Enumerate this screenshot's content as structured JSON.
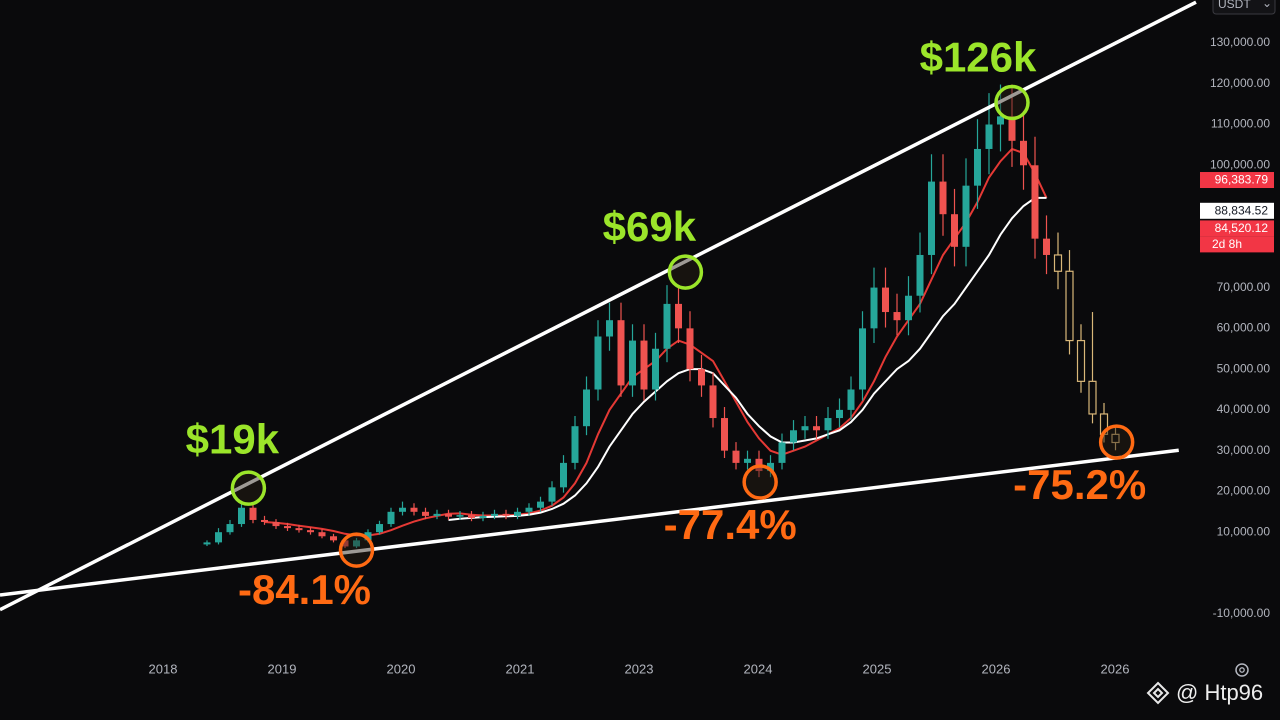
{
  "page": {
    "currency": "USDT",
    "watermark": "@ Htp96"
  },
  "chart_data": {
    "type": "candlestick",
    "xlim": [
      -18,
      86
    ],
    "ylim": [
      -20000,
      140000
    ],
    "yticks": [
      {
        "value": 130000,
        "label": "130,000.00"
      },
      {
        "value": 120000,
        "label": "120,000.00"
      },
      {
        "value": 110000,
        "label": "110,000.00"
      },
      {
        "value": 100000,
        "label": "100,000.00"
      },
      {
        "value": 70000,
        "label": "70,000.00"
      },
      {
        "value": 60000,
        "label": "60,000.00"
      },
      {
        "value": 50000,
        "label": "50,000.00"
      },
      {
        "value": 40000,
        "label": "40,000.00"
      },
      {
        "value": 30000,
        "label": "30,000.00"
      },
      {
        "value": 20000,
        "label": "20,000.00"
      },
      {
        "value": 10000,
        "label": "10,000.00"
      },
      {
        "value": -10000,
        "label": "-10,000.00"
      }
    ],
    "xlabels": [
      "2018",
      "2019",
      "2020",
      "2021",
      "2023",
      "2024",
      "2025",
      "2026",
      "2026"
    ],
    "candles": {
      "up_color": "#26a69a",
      "down_color": "#ef5350",
      "x": [
        0,
        1,
        2,
        3,
        4,
        5,
        6,
        7,
        8,
        9,
        10,
        11,
        12,
        13,
        14,
        15,
        16,
        17,
        18,
        19,
        20,
        21,
        22,
        23,
        24,
        25,
        26,
        27,
        28,
        29,
        30,
        31,
        32,
        33,
        34,
        35,
        36,
        37,
        38,
        39,
        40,
        41,
        42,
        43,
        44,
        45,
        46,
        47,
        48,
        49,
        50,
        51,
        52,
        53,
        54,
        55,
        56,
        57,
        58,
        59,
        60,
        61,
        62,
        63,
        64,
        65,
        66,
        67,
        68,
        69,
        70,
        71,
        72,
        73
      ],
      "open": [
        7000,
        7500,
        10000,
        12000,
        16000,
        13000,
        12500,
        11500,
        11000,
        10500,
        10000,
        9000,
        8000,
        6500,
        8000,
        10000,
        12000,
        15000,
        16000,
        15000,
        14000,
        14500,
        13800,
        14200,
        13500,
        14000,
        14500,
        14000,
        15000,
        16000,
        17500,
        21000,
        27000,
        36000,
        45000,
        58000,
        62000,
        46000,
        57000,
        45000,
        55000,
        66000,
        60000,
        50000,
        46000,
        38000,
        30000,
        27000,
        28000,
        25000,
        27000,
        32000,
        35000,
        36000,
        35000,
        38000,
        40000,
        45000,
        60000,
        70000,
        64000,
        62000,
        68000,
        78000,
        96000,
        88000,
        80000,
        95000,
        104000,
        110000,
        112000,
        106000,
        100000,
        82000
      ],
      "high": [
        8000,
        11000,
        13000,
        17500,
        16800,
        14000,
        13200,
        12300,
        11800,
        11200,
        10700,
        9600,
        8600,
        8600,
        10700,
        12800,
        16000,
        17500,
        17100,
        16000,
        15500,
        15500,
        15200,
        15200,
        15000,
        15500,
        15500,
        16000,
        17100,
        18700,
        22500,
        28900,
        38500,
        48200,
        62000,
        66300,
        66300,
        61000,
        61000,
        58900,
        70600,
        70600,
        64200,
        53500,
        49200,
        40700,
        32100,
        30000,
        30000,
        28900,
        34200,
        37500,
        38500,
        38500,
        40700,
        42800,
        48200,
        64200,
        74900,
        74900,
        68500,
        72800,
        83500,
        102700,
        102700,
        94200,
        101700,
        111300,
        117700,
        119800,
        119800,
        113400,
        107000,
        87700
      ],
      "low": [
        6600,
        7000,
        9400,
        11300,
        12200,
        11800,
        10800,
        10300,
        9900,
        9400,
        8500,
        7500,
        6100,
        6100,
        7500,
        9400,
        11300,
        14100,
        14100,
        13200,
        13200,
        13000,
        13000,
        12700,
        12700,
        13200,
        13200,
        13200,
        14100,
        15000,
        16500,
        19700,
        25400,
        33800,
        42300,
        54500,
        43200,
        43200,
        42300,
        42300,
        51700,
        56400,
        47000,
        43200,
        35700,
        28200,
        25400,
        25400,
        23500,
        23500,
        25400,
        30100,
        32900,
        32900,
        32900,
        35700,
        37600,
        42300,
        56400,
        60200,
        58300,
        58300,
        63900,
        73300,
        82700,
        75200,
        75200,
        89300,
        97800,
        103400,
        99600,
        94000,
        77100,
        73300
      ],
      "close": [
        7500,
        10000,
        12000,
        16000,
        13000,
        12500,
        11500,
        11000,
        10500,
        10000,
        9000,
        8000,
        6500,
        8000,
        10000,
        12000,
        15000,
        16000,
        15000,
        14000,
        14500,
        13800,
        14200,
        13500,
        14000,
        14500,
        14000,
        15000,
        16000,
        17500,
        21000,
        27000,
        36000,
        45000,
        58000,
        62000,
        46000,
        57000,
        45000,
        55000,
        66000,
        60000,
        50000,
        46000,
        38000,
        30000,
        27000,
        28000,
        25000,
        27000,
        32000,
        35000,
        36000,
        35000,
        38000,
        40000,
        45000,
        60000,
        70000,
        64000,
        62000,
        68000,
        78000,
        96000,
        88000,
        80000,
        95000,
        104000,
        110000,
        112000,
        106000,
        100000,
        82000,
        78000
      ]
    },
    "projection": {
      "color": "#d9b779",
      "x": [
        74,
        75,
        76,
        77,
        78,
        79
      ],
      "open": [
        78000,
        74000,
        57000,
        47000,
        39000,
        34000
      ],
      "high": [
        83500,
        79200,
        61000,
        64000,
        41700,
        36400
      ],
      "low": [
        69600,
        53600,
        44200,
        36700,
        32000,
        30100
      ],
      "close": [
        74000,
        57000,
        47000,
        39000,
        34000,
        32000
      ]
    },
    "moving_averages": [
      {
        "color": "#e53935",
        "values": [
          null,
          null,
          null,
          null,
          null,
          12500,
          12300,
          12000,
          11600,
          11200,
          10800,
          10300,
          9600,
          9200,
          9200,
          9600,
          10500,
          11600,
          12600,
          13400,
          14000,
          14500,
          14600,
          14300,
          14100,
          14100,
          14100,
          14300,
          14600,
          15300,
          16500,
          18500,
          22000,
          27000,
          34000,
          40000,
          44000,
          48000,
          50000,
          52000,
          55000,
          57000,
          56000,
          54000,
          52000,
          47000,
          42000,
          37000,
          33000,
          30000,
          29000,
          30000,
          31000,
          32500,
          34000,
          35500,
          38000,
          42000,
          47000,
          53000,
          58000,
          62000,
          66000,
          72000,
          78000,
          82000,
          86000,
          91000,
          97000,
          101000,
          104000,
          103000,
          98000,
          92000
        ]
      },
      {
        "color": "#ffffff",
        "values": [
          null,
          null,
          null,
          null,
          null,
          null,
          null,
          null,
          null,
          null,
          null,
          null,
          null,
          null,
          null,
          null,
          null,
          null,
          null,
          null,
          null,
          13000,
          13300,
          13500,
          13700,
          13800,
          13900,
          14000,
          14300,
          14800,
          15700,
          17000,
          19000,
          22000,
          26000,
          31000,
          35000,
          39000,
          42000,
          44500,
          47000,
          49000,
          50000,
          50000,
          49000,
          46000,
          43000,
          39000,
          36000,
          33500,
          32000,
          32000,
          32500,
          33000,
          34000,
          35000,
          37000,
          40000,
          44000,
          47000,
          50000,
          52000,
          55000,
          59000,
          63000,
          66000,
          70000,
          74000,
          78000,
          83000,
          87000,
          90000,
          92000,
          92000
        ]
      }
    ],
    "trendlines": [
      {
        "color": "#ffffff",
        "x": [
          -18,
          86
        ],
        "values": [
          -9000,
          140000
        ]
      },
      {
        "color": "#ffffff",
        "x": [
          -18,
          84.5
        ],
        "values": [
          -5400,
          30100
        ]
      }
    ],
    "annotations": [
      {
        "label": "$19k",
        "color": "#9be52a",
        "x": 3.6,
        "y": 20800
      },
      {
        "label": "$69k",
        "color": "#9be52a",
        "x": 41.6,
        "y": 73800
      },
      {
        "label": "$126k",
        "color": "#9be52a",
        "x": 70,
        "y": 115400
      },
      {
        "label": "-84.1%",
        "color": "#ff6a13",
        "x": 13,
        "y": 5600
      },
      {
        "label": "-77.4%",
        "color": "#ff6a13",
        "x": 48.1,
        "y": 22300
      },
      {
        "label": "-75.2%",
        "color": "#ff6a13",
        "x": 79.1,
        "y": 32100
      }
    ],
    "price_labels": [
      {
        "value": 96383.79,
        "label": "96,383.79",
        "color": "#f23645"
      },
      {
        "value": 88834.52,
        "label": "88,834.52",
        "color": "#ffffff"
      },
      {
        "value": 84520.12,
        "label": "84,520.12",
        "color": "#f23645"
      }
    ],
    "countdown": "2d 8h"
  }
}
